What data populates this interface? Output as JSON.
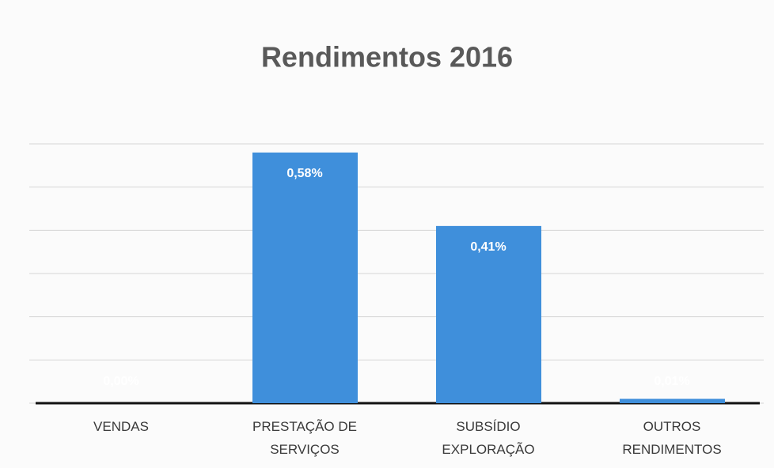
{
  "chart_data": {
    "type": "bar",
    "title": "Rendimentos 2016",
    "categories": [
      "VENDAS",
      "PRESTAÇÃO DE\nSERVIÇOS",
      "SUBSÍDIO\nEXPLORAÇÃO",
      "OUTROS\nRENDIMENTOS"
    ],
    "values": [
      0.0,
      0.58,
      0.41,
      0.01
    ],
    "value_labels": [
      "0,00%",
      "0,58%",
      "0,41%",
      "0,01%"
    ],
    "color": "#3f8fdb",
    "ylim": [
      0,
      0.6
    ],
    "yticks": [
      0,
      0.1,
      0.2,
      0.3,
      0.4,
      0.5,
      0.6
    ],
    "grid": true
  }
}
